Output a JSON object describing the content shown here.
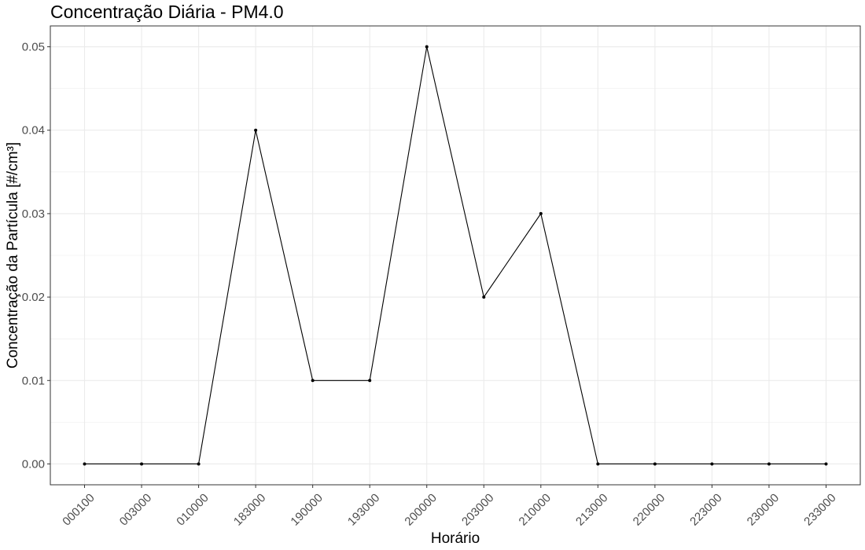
{
  "chart_data": {
    "type": "line",
    "title": "Concentração Diária - PM4.0",
    "xlabel": "Horário",
    "ylabel": "Concentração da Partícula [#/cm³]",
    "categories": [
      "000100",
      "003000",
      "010000",
      "183000",
      "190000",
      "193000",
      "200000",
      "203000",
      "210000",
      "213000",
      "220000",
      "223000",
      "230000",
      "233000"
    ],
    "series": [
      {
        "values": [
          0,
          0,
          0,
          0.04,
          0.01,
          0.01,
          0.05,
          0.02,
          0.03,
          0,
          0,
          0,
          0,
          0
        ]
      }
    ],
    "yticks": [
      0.0,
      0.01,
      0.02,
      0.03,
      0.04,
      0.05
    ],
    "ytick_labels": [
      "0.00",
      "0.01",
      "0.02",
      "0.03",
      "0.04",
      "0.05"
    ],
    "ylim": [
      -0.0025,
      0.0525
    ],
    "grid": true,
    "legend": "none",
    "colors": {
      "line": "#000000",
      "grid": "#ebebeb",
      "panel_border": "#333333"
    }
  }
}
